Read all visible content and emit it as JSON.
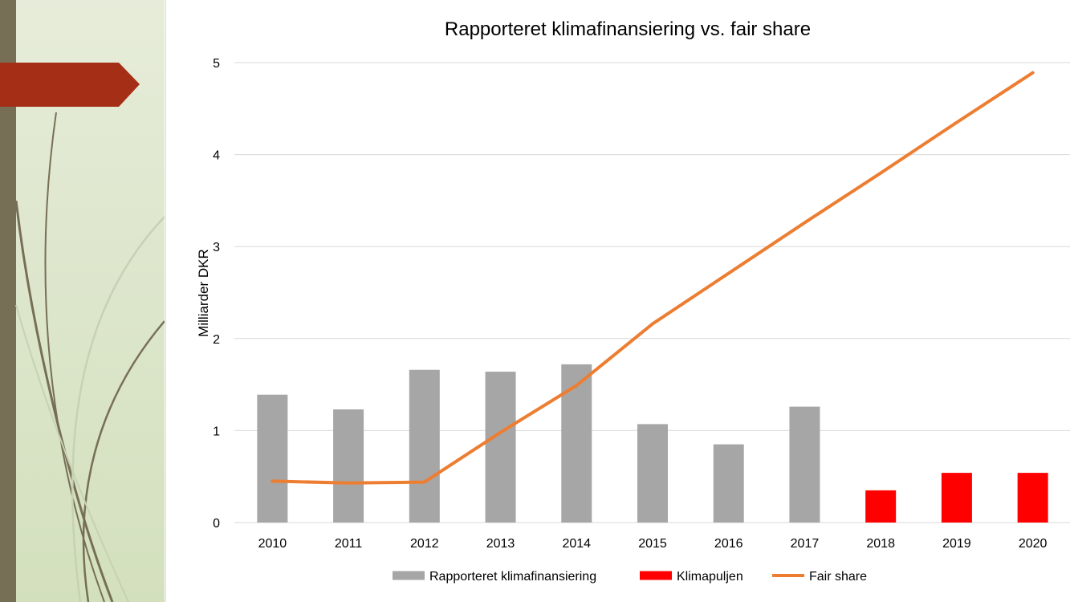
{
  "chart_data": {
    "type": "bar",
    "title": "Rapporteret klimafinansiering vs. fair share",
    "xlabel": "",
    "ylabel": "Milliarder DKR",
    "ylim": [
      0,
      5
    ],
    "yticks": [
      0,
      1,
      2,
      3,
      4,
      5
    ],
    "categories": [
      "2010",
      "2011",
      "2012",
      "2013",
      "2014",
      "2015",
      "2016",
      "2017",
      "2018",
      "2019",
      "2020"
    ],
    "grid": true,
    "legend_position": "bottom",
    "series": [
      {
        "name": "Rapporteret klimafinansiering",
        "type": "bar",
        "color": "#a6a6a6",
        "values": [
          1.39,
          1.23,
          1.66,
          1.64,
          1.72,
          1.07,
          0.85,
          1.26,
          null,
          null,
          null
        ]
      },
      {
        "name": "Klimapuljen",
        "type": "bar",
        "color": "#ff0000",
        "values": [
          null,
          null,
          null,
          null,
          null,
          null,
          null,
          null,
          0.35,
          0.54,
          0.54
        ]
      },
      {
        "name": "Fair share",
        "type": "line",
        "color": "#ed7d31",
        "values": [
          0.45,
          0.43,
          0.44,
          0.98,
          1.49,
          2.16,
          2.71,
          3.26,
          3.8,
          4.35,
          4.89
        ]
      }
    ]
  }
}
